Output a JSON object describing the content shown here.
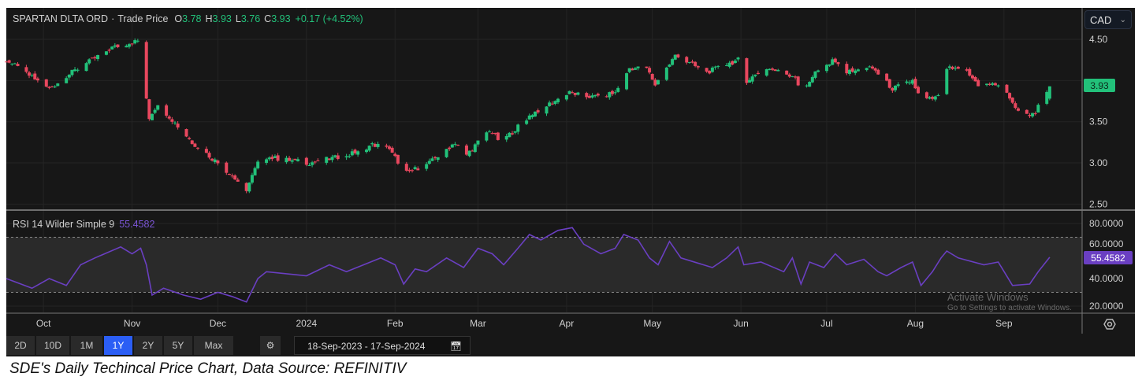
{
  "header": {
    "symbol": "SPARTAN DLTA ORD",
    "separator": "·",
    "series": "Trade Price",
    "o_label": "O",
    "o_value": "3.78",
    "h_label": "H",
    "h_value": "3.93",
    "l_label": "L",
    "l_value": "3.76",
    "c_label": "C",
    "c_value": "3.93",
    "change": "+0.17 (+4.52%)"
  },
  "currency": "CAD",
  "colors": {
    "up": "#22c17a",
    "down": "#e8475e",
    "rsi": "#6a3fc2",
    "active_button": "#2b5ef5",
    "last_price_badge": "#22c17a",
    "rsi_badge": "#6a3fc2"
  },
  "chart_data": [
    {
      "type": "candlestick",
      "title": "SPARTAN DLTA ORD · Trade Price",
      "y_ticks": [
        "4.50",
        "3.50",
        "3.00",
        "2.50"
      ],
      "ylim": [
        2.5,
        4.55
      ],
      "last_price": "3.93",
      "last_candle": {
        "date": "2024-09-17",
        "open": 3.78,
        "high": 3.93,
        "low": 3.76,
        "close": 3.93
      },
      "approx_closes": [
        [
          "2023-09-18",
          4.25
        ],
        [
          "2023-10-03",
          3.9
        ],
        [
          "2023-10-11",
          4.1
        ],
        [
          "2023-10-25",
          4.4
        ],
        [
          "2023-11-03",
          4.48
        ],
        [
          "2023-11-07",
          3.55
        ],
        [
          "2023-11-10",
          3.72
        ],
        [
          "2023-11-22",
          3.25
        ],
        [
          "2023-12-01",
          3.0
        ],
        [
          "2023-12-11",
          2.68
        ],
        [
          "2023-12-16",
          3.08
        ],
        [
          "2024-01-02",
          3.0
        ],
        [
          "2024-01-16",
          3.1
        ],
        [
          "2024-01-24",
          3.22
        ],
        [
          "2024-01-29",
          3.2
        ],
        [
          "2024-02-05",
          2.88
        ],
        [
          "2024-02-13",
          3.0
        ],
        [
          "2024-02-22",
          3.25
        ],
        [
          "2024-02-26",
          3.1
        ],
        [
          "2024-03-05",
          3.4
        ],
        [
          "2024-03-09",
          3.25
        ],
        [
          "2024-03-20",
          3.6
        ],
        [
          "2024-04-02",
          3.85
        ],
        [
          "2024-04-10",
          3.8
        ],
        [
          "2024-04-18",
          3.85
        ],
        [
          "2024-04-23",
          4.15
        ],
        [
          "2024-04-29",
          4.15
        ],
        [
          "2024-05-02",
          3.95
        ],
        [
          "2024-05-09",
          4.3
        ],
        [
          "2024-05-20",
          4.1
        ],
        [
          "2024-05-31",
          4.25
        ],
        [
          "2024-06-03",
          4.0
        ],
        [
          "2024-06-10",
          4.15
        ],
        [
          "2024-06-20",
          4.05
        ],
        [
          "2024-06-22",
          3.85
        ],
        [
          "2024-06-27",
          4.1
        ],
        [
          "2024-07-04",
          4.25
        ],
        [
          "2024-07-08",
          4.1
        ],
        [
          "2024-07-17",
          4.15
        ],
        [
          "2024-07-24",
          3.9
        ],
        [
          "2024-07-31",
          4.0
        ],
        [
          "2024-08-03",
          3.75
        ],
        [
          "2024-08-09",
          3.8
        ],
        [
          "2024-08-12",
          4.15
        ],
        [
          "2024-08-19",
          4.1
        ],
        [
          "2024-08-23",
          3.95
        ],
        [
          "2024-08-30",
          3.95
        ],
        [
          "2024-09-03",
          3.8
        ],
        [
          "2024-09-07",
          3.55
        ],
        [
          "2024-09-12",
          3.62
        ],
        [
          "2024-09-17",
          3.93
        ]
      ]
    },
    {
      "type": "line",
      "title": "RSI 14 Wilder Simple 9",
      "last_value": "55.4582",
      "y_ticks": [
        "80.0000",
        "60.0000",
        "40.0000",
        "20.0000"
      ],
      "ylim": [
        15,
        85
      ],
      "bands": [
        30,
        70
      ],
      "values": [
        [
          "2023-09-18",
          40
        ],
        [
          "2023-09-27",
          33
        ],
        [
          "2023-10-03",
          40
        ],
        [
          "2023-10-09",
          35
        ],
        [
          "2023-10-14",
          50
        ],
        [
          "2023-10-19",
          55
        ],
        [
          "2023-10-28",
          63
        ],
        [
          "2023-11-01",
          58
        ],
        [
          "2023-11-04",
          62
        ],
        [
          "2023-11-06",
          50
        ],
        [
          "2023-11-08",
          28
        ],
        [
          "2023-11-12",
          33
        ],
        [
          "2023-11-19",
          28
        ],
        [
          "2023-11-25",
          25
        ],
        [
          "2023-12-01",
          30
        ],
        [
          "2023-12-06",
          27
        ],
        [
          "2023-12-11",
          23
        ],
        [
          "2023-12-15",
          40
        ],
        [
          "2023-12-18",
          45
        ],
        [
          "2024-01-01",
          42
        ],
        [
          "2024-01-09",
          50
        ],
        [
          "2024-01-15",
          45
        ],
        [
          "2024-01-21",
          50
        ],
        [
          "2024-01-27",
          55
        ],
        [
          "2024-02-01",
          50
        ],
        [
          "2024-02-04",
          36
        ],
        [
          "2024-02-08",
          47
        ],
        [
          "2024-02-12",
          45
        ],
        [
          "2024-02-19",
          55
        ],
        [
          "2024-02-25",
          48
        ],
        [
          "2024-03-01",
          62
        ],
        [
          "2024-03-06",
          58
        ],
        [
          "2024-03-10",
          50
        ],
        [
          "2024-03-15",
          62
        ],
        [
          "2024-03-19",
          72
        ],
        [
          "2024-03-23",
          68
        ],
        [
          "2024-03-29",
          75
        ],
        [
          "2024-04-03",
          77
        ],
        [
          "2024-04-07",
          65
        ],
        [
          "2024-04-13",
          58
        ],
        [
          "2024-04-18",
          62
        ],
        [
          "2024-04-21",
          72
        ],
        [
          "2024-04-26",
          68
        ],
        [
          "2024-04-30",
          55
        ],
        [
          "2024-05-03",
          50
        ],
        [
          "2024-05-07",
          67
        ],
        [
          "2024-05-11",
          55
        ],
        [
          "2024-05-22",
          48
        ],
        [
          "2024-05-27",
          55
        ],
        [
          "2024-05-31",
          63
        ],
        [
          "2024-06-02",
          50
        ],
        [
          "2024-06-08",
          52
        ],
        [
          "2024-06-16",
          45
        ],
        [
          "2024-06-19",
          55
        ],
        [
          "2024-06-22",
          36
        ],
        [
          "2024-06-25",
          52
        ],
        [
          "2024-06-30",
          48
        ],
        [
          "2024-07-04",
          58
        ],
        [
          "2024-07-08",
          50
        ],
        [
          "2024-07-14",
          54
        ],
        [
          "2024-07-19",
          45
        ],
        [
          "2024-07-22",
          42
        ],
        [
          "2024-07-27",
          48
        ],
        [
          "2024-07-31",
          52
        ],
        [
          "2024-08-03",
          35
        ],
        [
          "2024-08-07",
          45
        ],
        [
          "2024-08-10",
          55
        ],
        [
          "2024-08-12",
          60
        ],
        [
          "2024-08-16",
          55
        ],
        [
          "2024-08-25",
          50
        ],
        [
          "2024-08-30",
          52
        ],
        [
          "2024-09-04",
          35
        ],
        [
          "2024-09-10",
          36
        ],
        [
          "2024-09-13",
          45
        ],
        [
          "2024-09-17",
          55.4582
        ]
      ]
    }
  ],
  "x_axis": {
    "labels": [
      "Oct",
      "Nov",
      "Dec",
      "2024",
      "Feb",
      "Mar",
      "Apr",
      "May",
      "Jun",
      "Jul",
      "Aug",
      "Sep"
    ],
    "label_dates": [
      "2023-10-01",
      "2023-11-01",
      "2023-12-01",
      "2024-01-01",
      "2024-02-01",
      "2024-03-01",
      "2024-04-01",
      "2024-05-01",
      "2024-06-01",
      "2024-07-01",
      "2024-08-01",
      "2024-09-01"
    ]
  },
  "toolbar": {
    "periods": [
      "2D",
      "10D",
      "1M",
      "1Y",
      "2Y",
      "5Y",
      "Max"
    ],
    "active": "1Y",
    "date_range": "18-Sep-2023 - 17-Sep-2024"
  },
  "icons": {
    "settings": "gear-icon",
    "calendar": "calendar-icon",
    "axis_settings": "hexagon-settings-icon",
    "dropdown": "chevron-down-icon"
  },
  "watermark": {
    "line1": "Activate Windows",
    "line2": "Go to Settings to activate Windows."
  },
  "caption": "SDE's Daily Techincal Price Chart, Data Source: REFINITIV"
}
